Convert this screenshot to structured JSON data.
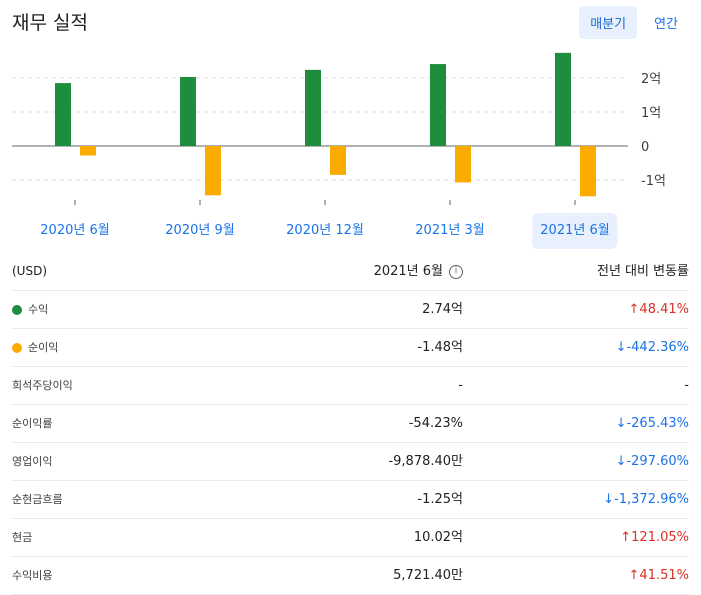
{
  "header": {
    "title": "재무 실적",
    "tabs": [
      {
        "label": "매분기",
        "active": true
      },
      {
        "label": "연간",
        "active": false
      }
    ]
  },
  "colors": {
    "revenue": "#1e8e3e",
    "net_income": "#f9ab00",
    "accent": "#1a73e8",
    "up": "#d93025",
    "down": "#1a73e8"
  },
  "chart_data": {
    "type": "bar",
    "categories": [
      "2020년 6월",
      "2020년 9월",
      "2020년 12월",
      "2021년 3월",
      "2021년 6월"
    ],
    "series": [
      {
        "name": "수익",
        "values": [
          1.85,
          2.03,
          2.24,
          2.41,
          2.74
        ]
      },
      {
        "name": "순이익",
        "values": [
          -0.28,
          -1.45,
          -0.85,
          -1.07,
          -1.48
        ]
      }
    ],
    "y_ticks": [
      {
        "value": 2,
        "label": "2억"
      },
      {
        "value": 1,
        "label": "1억"
      },
      {
        "value": 0,
        "label": "0"
      },
      {
        "value": -1,
        "label": "-1억"
      }
    ],
    "ylim": [
      -1.65,
      2.85
    ],
    "grid": true,
    "selected_category": "2021년 6월"
  },
  "table": {
    "header": {
      "label": "(USD)",
      "period": "2021년 6월",
      "change": "전년 대비 변동률"
    },
    "rows": [
      {
        "label": "수익",
        "dot": "#1e8e3e",
        "value": "2.74억",
        "change": "48.41%",
        "arrow": "↑",
        "dir": "up"
      },
      {
        "label": "순이익",
        "dot": "#f9ab00",
        "value": "-1.48억",
        "change": "-442.36%",
        "arrow": "↓",
        "dir": "down"
      },
      {
        "label": "희석주당이익",
        "value": "-",
        "change": "-",
        "arrow": "",
        "dir": "neutral"
      },
      {
        "label": "순이익률",
        "value": "-54.23%",
        "change": "-265.43%",
        "arrow": "↓",
        "dir": "down"
      },
      {
        "label": "영업이익",
        "value": "-9,878.40만",
        "change": "-297.60%",
        "arrow": "↓",
        "dir": "down"
      },
      {
        "label": "순현금흐름",
        "value": "-1.25억",
        "change": "-1,372.96%",
        "arrow": "↓",
        "dir": "down"
      },
      {
        "label": "현금",
        "value": "10.02억",
        "change": "121.05%",
        "arrow": "↑",
        "dir": "up"
      },
      {
        "label": "수익비용",
        "value": "5,721.40만",
        "change": "41.51%",
        "arrow": "↑",
        "dir": "up"
      }
    ]
  }
}
